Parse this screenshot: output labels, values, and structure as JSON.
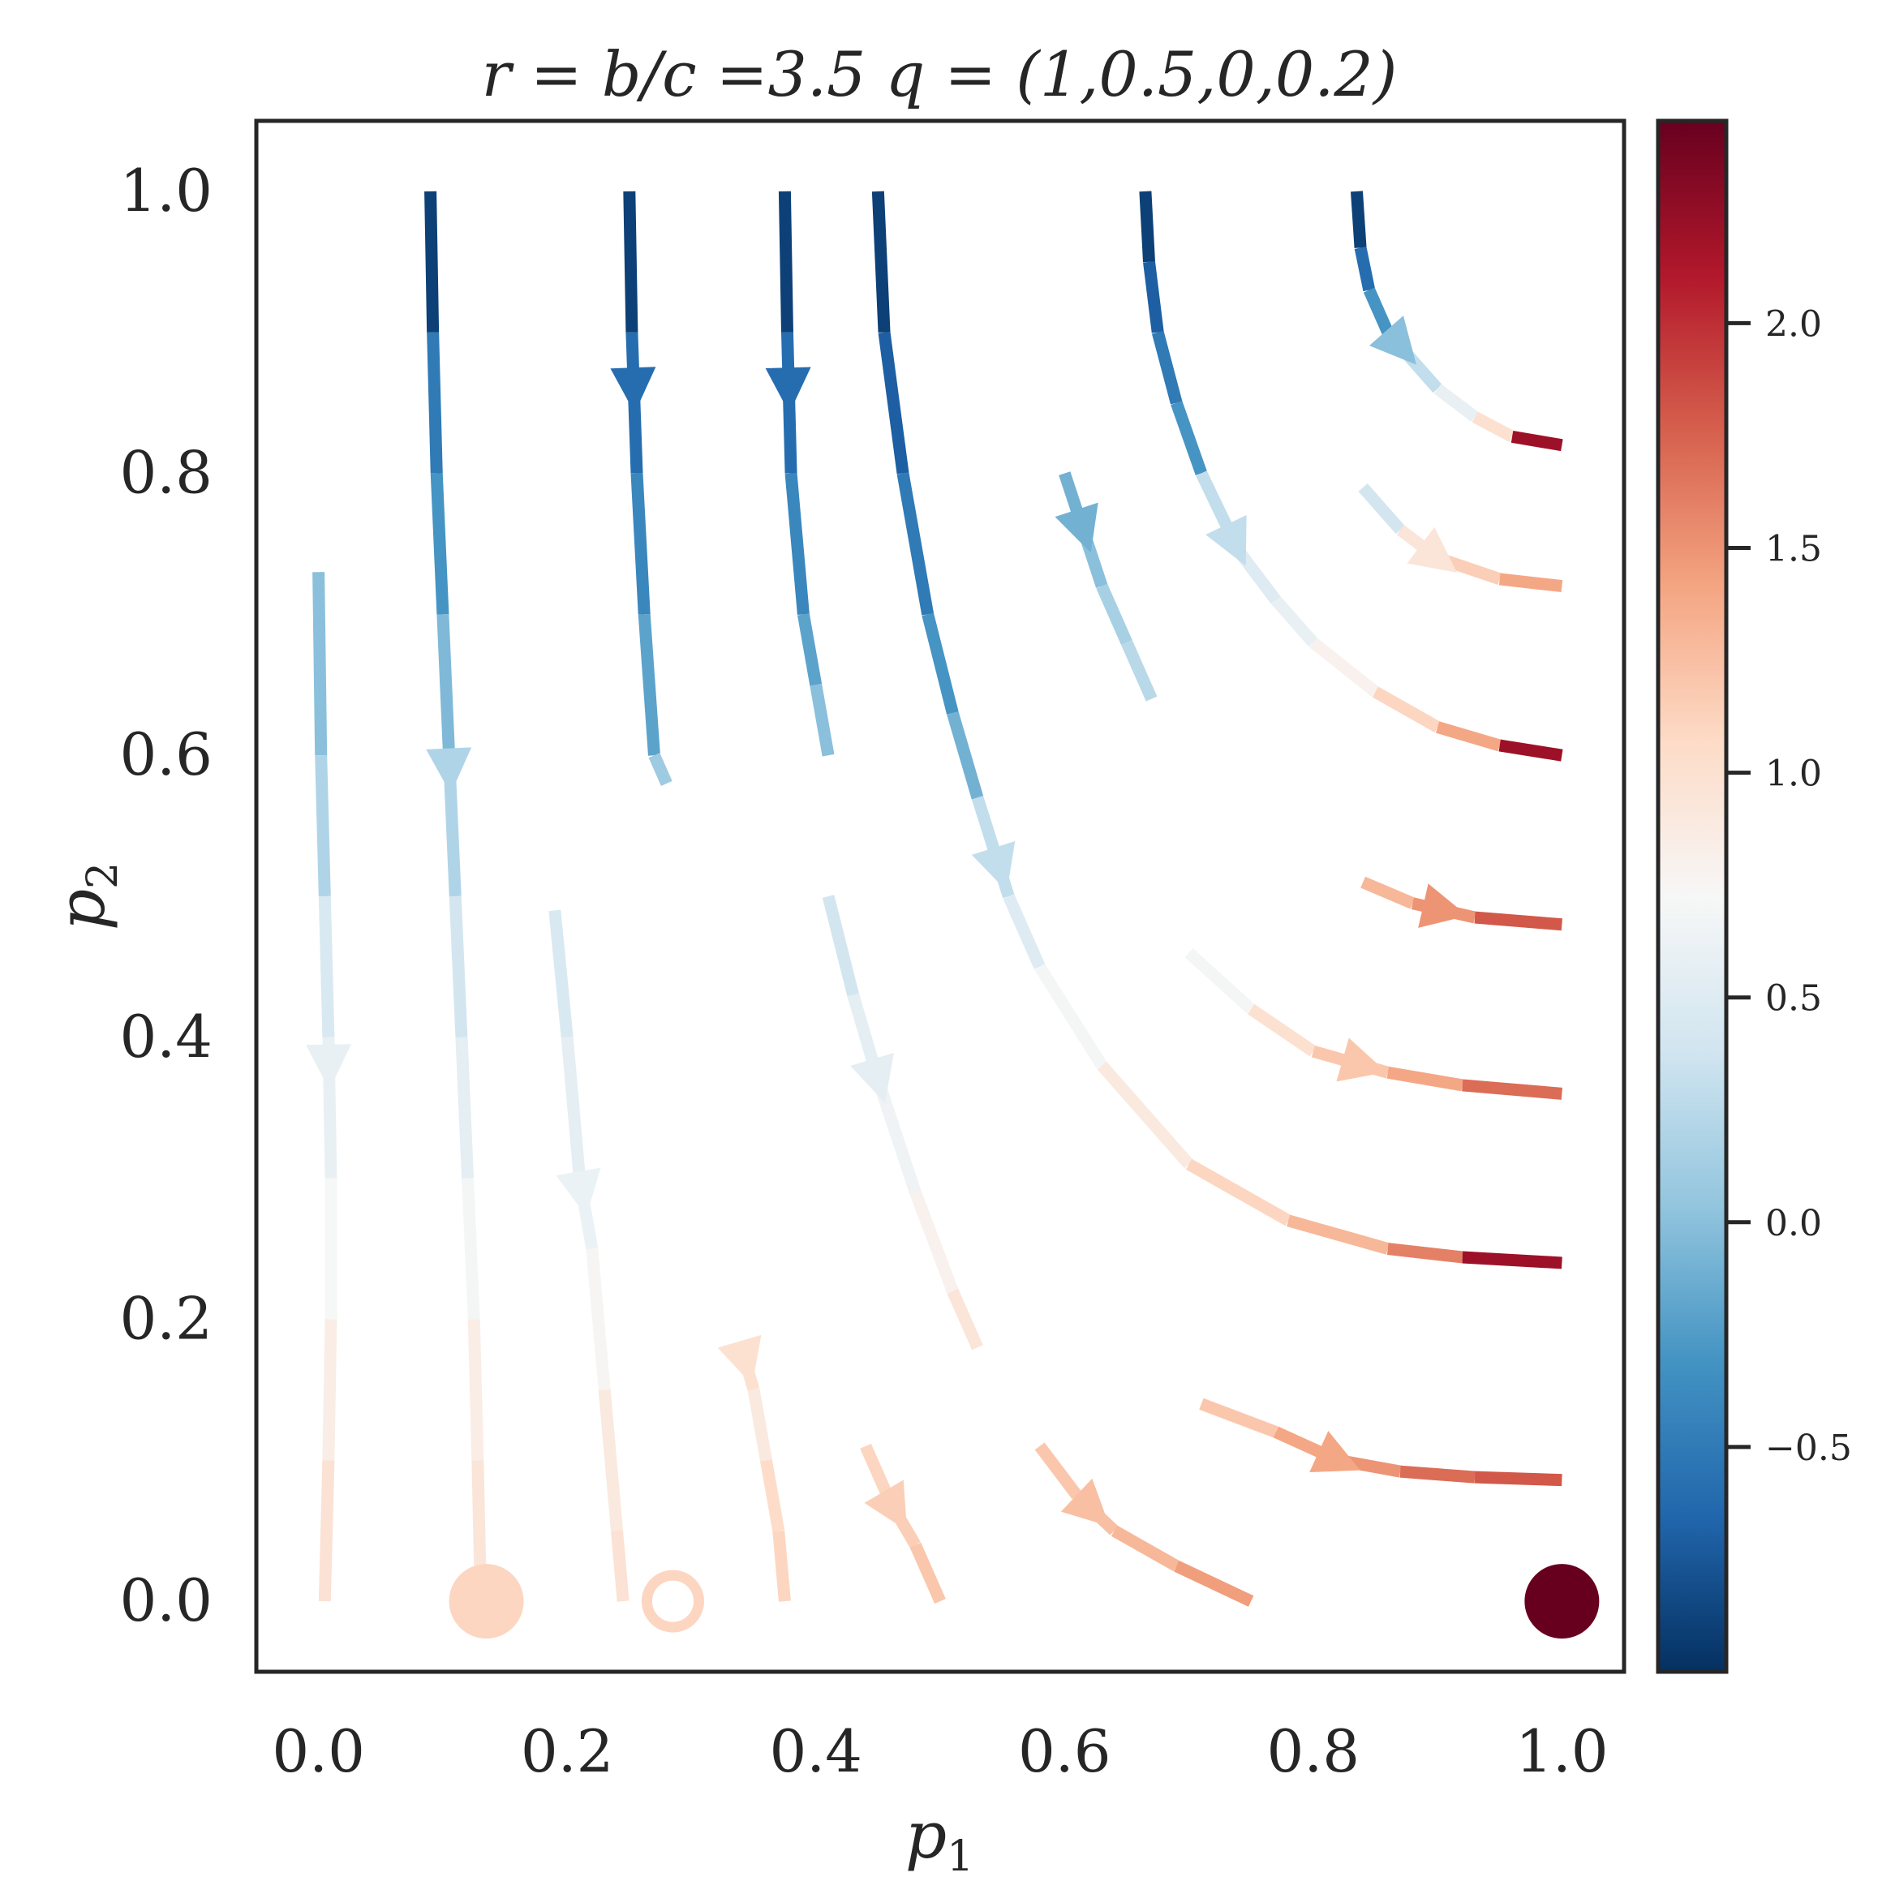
{
  "chart_data": {
    "type": "streamplot",
    "title": "r = b/c =3.5 q = (1,0.5,0,0.2)",
    "xlabel": "p",
    "xlabel_sub": "1",
    "ylabel": "p",
    "ylabel_sub": "2",
    "xlim": [
      -0.05,
      1.05
    ],
    "ylim": [
      -0.05,
      1.05
    ],
    "xticks": [
      "0.0",
      "0.2",
      "0.4",
      "0.6",
      "0.8",
      "1.0"
    ],
    "yticks": [
      "0.0",
      "0.2",
      "0.4",
      "0.6",
      "0.8",
      "1.0"
    ],
    "grid": false,
    "colorbar": {
      "colormap": "RdBu_r",
      "vmin": -1.0,
      "vmax": 2.45,
      "ticks": [
        -0.5,
        0.0,
        0.5,
        1.0,
        1.5,
        2.0
      ],
      "tick_labels": [
        "−0.5",
        "0.0",
        "0.5",
        "1.0",
        "1.5",
        "2.0"
      ]
    },
    "streamlines": [
      {
        "points": [
          [
            0.09,
            1.0
          ],
          [
            0.092,
            0.9
          ],
          [
            0.095,
            0.8
          ],
          [
            0.1,
            0.7
          ],
          [
            0.105,
            0.6
          ],
          [
            0.11,
            0.5
          ],
          [
            0.115,
            0.4
          ],
          [
            0.12,
            0.3
          ],
          [
            0.125,
            0.2
          ],
          [
            0.128,
            0.1
          ],
          [
            0.13,
            0.02
          ]
        ],
        "values": [
          -0.9,
          -0.5,
          -0.3,
          -0.05,
          0.2,
          0.4,
          0.55,
          0.7,
          0.85,
          0.95
        ],
        "arrow_at": 0.59
      },
      {
        "points": [
          [
            0.25,
            1.0
          ],
          [
            0.252,
            0.9
          ],
          [
            0.256,
            0.8
          ],
          [
            0.262,
            0.7
          ],
          [
            0.27,
            0.6
          ],
          [
            0.28,
            0.58
          ]
        ],
        "values": [
          -0.9,
          -0.6,
          -0.4,
          -0.2,
          0.1
        ],
        "arrow_at": 0.86
      },
      {
        "points": [
          [
            0.375,
            1.0
          ],
          [
            0.377,
            0.9
          ],
          [
            0.38,
            0.8
          ],
          [
            0.39,
            0.7
          ],
          [
            0.4,
            0.65
          ],
          [
            0.41,
            0.6
          ]
        ],
        "values": [
          -0.9,
          -0.6,
          -0.4,
          -0.2,
          0.0
        ],
        "arrow_at": 0.86
      },
      {
        "points": [
          [
            0.45,
            1.0
          ],
          [
            0.455,
            0.9
          ],
          [
            0.47,
            0.8
          ],
          [
            0.49,
            0.7
          ],
          [
            0.51,
            0.63
          ],
          [
            0.53,
            0.57
          ],
          [
            0.555,
            0.5
          ],
          [
            0.58,
            0.45
          ],
          [
            0.63,
            0.38
          ],
          [
            0.7,
            0.31
          ],
          [
            0.78,
            0.27
          ],
          [
            0.86,
            0.25
          ],
          [
            0.92,
            0.244
          ],
          [
            1.0,
            0.24
          ]
        ],
        "values": [
          -0.9,
          -0.7,
          -0.5,
          -0.3,
          -0.1,
          0.3,
          0.5,
          0.7,
          0.9,
          1.1,
          1.3,
          1.6,
          2.2
        ],
        "arrow_at": 0.52
      },
      {
        "points": [
          [
            0.665,
            1.0
          ],
          [
            0.668,
            0.95
          ],
          [
            0.675,
            0.9
          ],
          [
            0.69,
            0.85
          ],
          [
            0.71,
            0.8
          ],
          [
            0.74,
            0.745
          ],
          [
            0.77,
            0.71
          ],
          [
            0.8,
            0.68
          ],
          [
            0.85,
            0.645
          ],
          [
            0.9,
            0.62
          ],
          [
            0.95,
            0.607
          ],
          [
            1.0,
            0.6
          ]
        ],
        "values": [
          -0.9,
          -0.7,
          -0.5,
          -0.3,
          0.3,
          0.5,
          0.6,
          0.8,
          1.1,
          1.4,
          2.2
        ],
        "arrow_at": 0.75
      },
      {
        "points": [
          [
            0.835,
            1.0
          ],
          [
            0.838,
            0.96
          ],
          [
            0.845,
            0.93
          ],
          [
            0.86,
            0.9
          ],
          [
            0.875,
            0.885
          ],
          [
            0.9,
            0.86
          ],
          [
            0.93,
            0.84
          ],
          [
            0.96,
            0.826
          ],
          [
            1.0,
            0.82
          ]
        ],
        "values": [
          -0.9,
          -0.6,
          -0.3,
          0.0,
          0.3,
          0.6,
          1.0,
          2.2
        ],
        "arrow_at": 0.89
      },
      {
        "points": [
          [
            0.0,
            0.73
          ],
          [
            0.002,
            0.6
          ],
          [
            0.005,
            0.5
          ],
          [
            0.008,
            0.4
          ],
          [
            0.01,
            0.3
          ],
          [
            0.01,
            0.2
          ],
          [
            0.008,
            0.1
          ],
          [
            0.005,
            0.0
          ]
        ],
        "values": [
          0.0,
          0.2,
          0.45,
          0.6,
          0.72,
          0.85,
          0.98
        ],
        "arrow_at": 0.38
      },
      {
        "points": [
          [
            0.19,
            0.49
          ],
          [
            0.2,
            0.4
          ],
          [
            0.21,
            0.3
          ],
          [
            0.22,
            0.25
          ],
          [
            0.23,
            0.15
          ],
          [
            0.24,
            0.05
          ],
          [
            0.245,
            0.0
          ]
        ],
        "values": [
          0.45,
          0.55,
          0.62,
          0.75,
          0.9,
          0.98
        ],
        "arrow_at": 0.29
      },
      {
        "points": [
          [
            0.34,
            0.18
          ],
          [
            0.35,
            0.15
          ],
          [
            0.36,
            0.1
          ],
          [
            0.37,
            0.05
          ],
          [
            0.375,
            0.0
          ]
        ],
        "values": [
          1.0,
          0.9,
          1.05,
          1.1
        ],
        "arrow_at": 0.17
      },
      {
        "points": [
          [
            0.41,
            0.5
          ],
          [
            0.43,
            0.43
          ],
          [
            0.45,
            0.37
          ],
          [
            0.48,
            0.29
          ],
          [
            0.51,
            0.22
          ],
          [
            0.53,
            0.18
          ]
        ],
        "values": [
          0.4,
          0.55,
          0.65,
          0.8,
          0.95
        ],
        "arrow_at": 0.37
      },
      {
        "points": [
          [
            0.6,
            0.8
          ],
          [
            0.615,
            0.76
          ],
          [
            0.63,
            0.72
          ],
          [
            0.65,
            0.68
          ],
          [
            0.67,
            0.64
          ]
        ],
        "values": [
          -0.1,
          0.0,
          0.15,
          0.25
        ],
        "arrow_at": 0.76
      },
      {
        "points": [
          [
            0.84,
            0.79
          ],
          [
            0.87,
            0.76
          ],
          [
            0.9,
            0.74
          ],
          [
            0.95,
            0.725
          ],
          [
            1.0,
            0.72
          ]
        ],
        "values": [
          0.4,
          0.95,
          1.15,
          1.4,
          2.2
        ],
        "arrow_at": 0.74
      },
      {
        "points": [
          [
            0.84,
            0.51
          ],
          [
            0.88,
            0.495
          ],
          [
            0.93,
            0.485
          ],
          [
            1.0,
            0.48
          ]
        ],
        "values": [
          1.3,
          1.5,
          1.8,
          2.0
        ],
        "arrow_at": 0.49
      },
      {
        "points": [
          [
            0.7,
            0.46
          ],
          [
            0.75,
            0.42
          ],
          [
            0.8,
            0.39
          ],
          [
            0.86,
            0.375
          ],
          [
            0.92,
            0.366
          ],
          [
            1.0,
            0.36
          ]
        ],
        "values": [
          0.7,
          1.0,
          1.2,
          1.4,
          1.7,
          2.2
        ],
        "arrow_at": 0.38
      },
      {
        "points": [
          [
            0.71,
            0.14
          ],
          [
            0.77,
            0.12
          ],
          [
            0.82,
            0.1
          ],
          [
            0.87,
            0.092
          ],
          [
            0.93,
            0.088
          ],
          [
            1.0,
            0.086
          ]
        ],
        "values": [
          1.2,
          1.4,
          1.5,
          1.7,
          1.8,
          2.4
        ],
        "arrow_at": 0.1
      },
      {
        "points": [
          [
            0.44,
            0.11
          ],
          [
            0.46,
            0.07
          ],
          [
            0.48,
            0.04
          ],
          [
            0.5,
            0.0
          ]
        ],
        "values": [
          1.1,
          1.15,
          1.2
        ],
        "arrow_at": 0.065
      },
      {
        "points": [
          [
            0.58,
            0.11
          ],
          [
            0.61,
            0.075
          ],
          [
            0.64,
            0.05
          ],
          [
            0.69,
            0.025
          ],
          [
            0.75,
            0.0
          ]
        ],
        "values": [
          1.2,
          1.25,
          1.3,
          1.45
        ],
        "arrow_at": 0.065
      }
    ],
    "fixed_points": [
      {
        "p1": 0.135,
        "p2": 0.0,
        "type": "stable",
        "value": 1.1
      },
      {
        "p1": 0.285,
        "p2": 0.0,
        "type": "unstable",
        "value": 1.1
      },
      {
        "p1": 1.0,
        "p2": 0.0,
        "type": "stable",
        "value": 2.45
      }
    ]
  }
}
